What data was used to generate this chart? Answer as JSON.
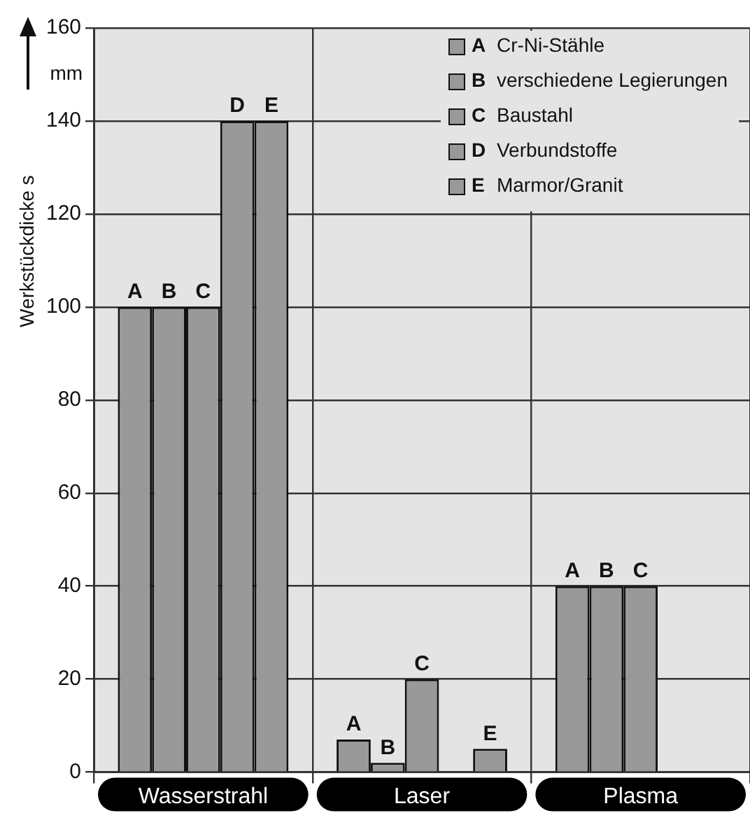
{
  "chart_data": {
    "type": "bar",
    "ylabel": "Werkstückdicke s",
    "annotations": [
      "mm"
    ],
    "categories": [
      "Wasserstrahl",
      "Laser",
      "Plasma"
    ],
    "series": [
      {
        "name": "Cr-Ni-Stähle",
        "color": "#999999",
        "values": [
          100,
          7,
          40
        ],
        "value_labels": [
          "A",
          "A",
          "A"
        ]
      },
      {
        "name": "verschiedene Legierungen",
        "color": "#999999",
        "values": [
          100,
          2,
          40
        ],
        "value_labels": [
          "B",
          "B",
          "B"
        ]
      },
      {
        "name": "Baustahl",
        "color": "#999999",
        "values": [
          100,
          20,
          40
        ],
        "value_labels": [
          "C",
          "C",
          "C"
        ]
      },
      {
        "name": "Verbundstoffe",
        "color": "#999999",
        "values": [
          140,
          null,
          null
        ],
        "value_labels": [
          "D",
          null,
          null
        ]
      },
      {
        "name": "Marmor/Granit",
        "color": "#999999",
        "values": [
          140,
          5,
          null
        ],
        "value_labels": [
          "E",
          "E",
          null
        ]
      }
    ],
    "ylim": [
      0,
      160
    ],
    "yticks": [
      0,
      20,
      40,
      60,
      80,
      100,
      120,
      140,
      160
    ],
    "grid": true,
    "legend": "top right"
  }
}
